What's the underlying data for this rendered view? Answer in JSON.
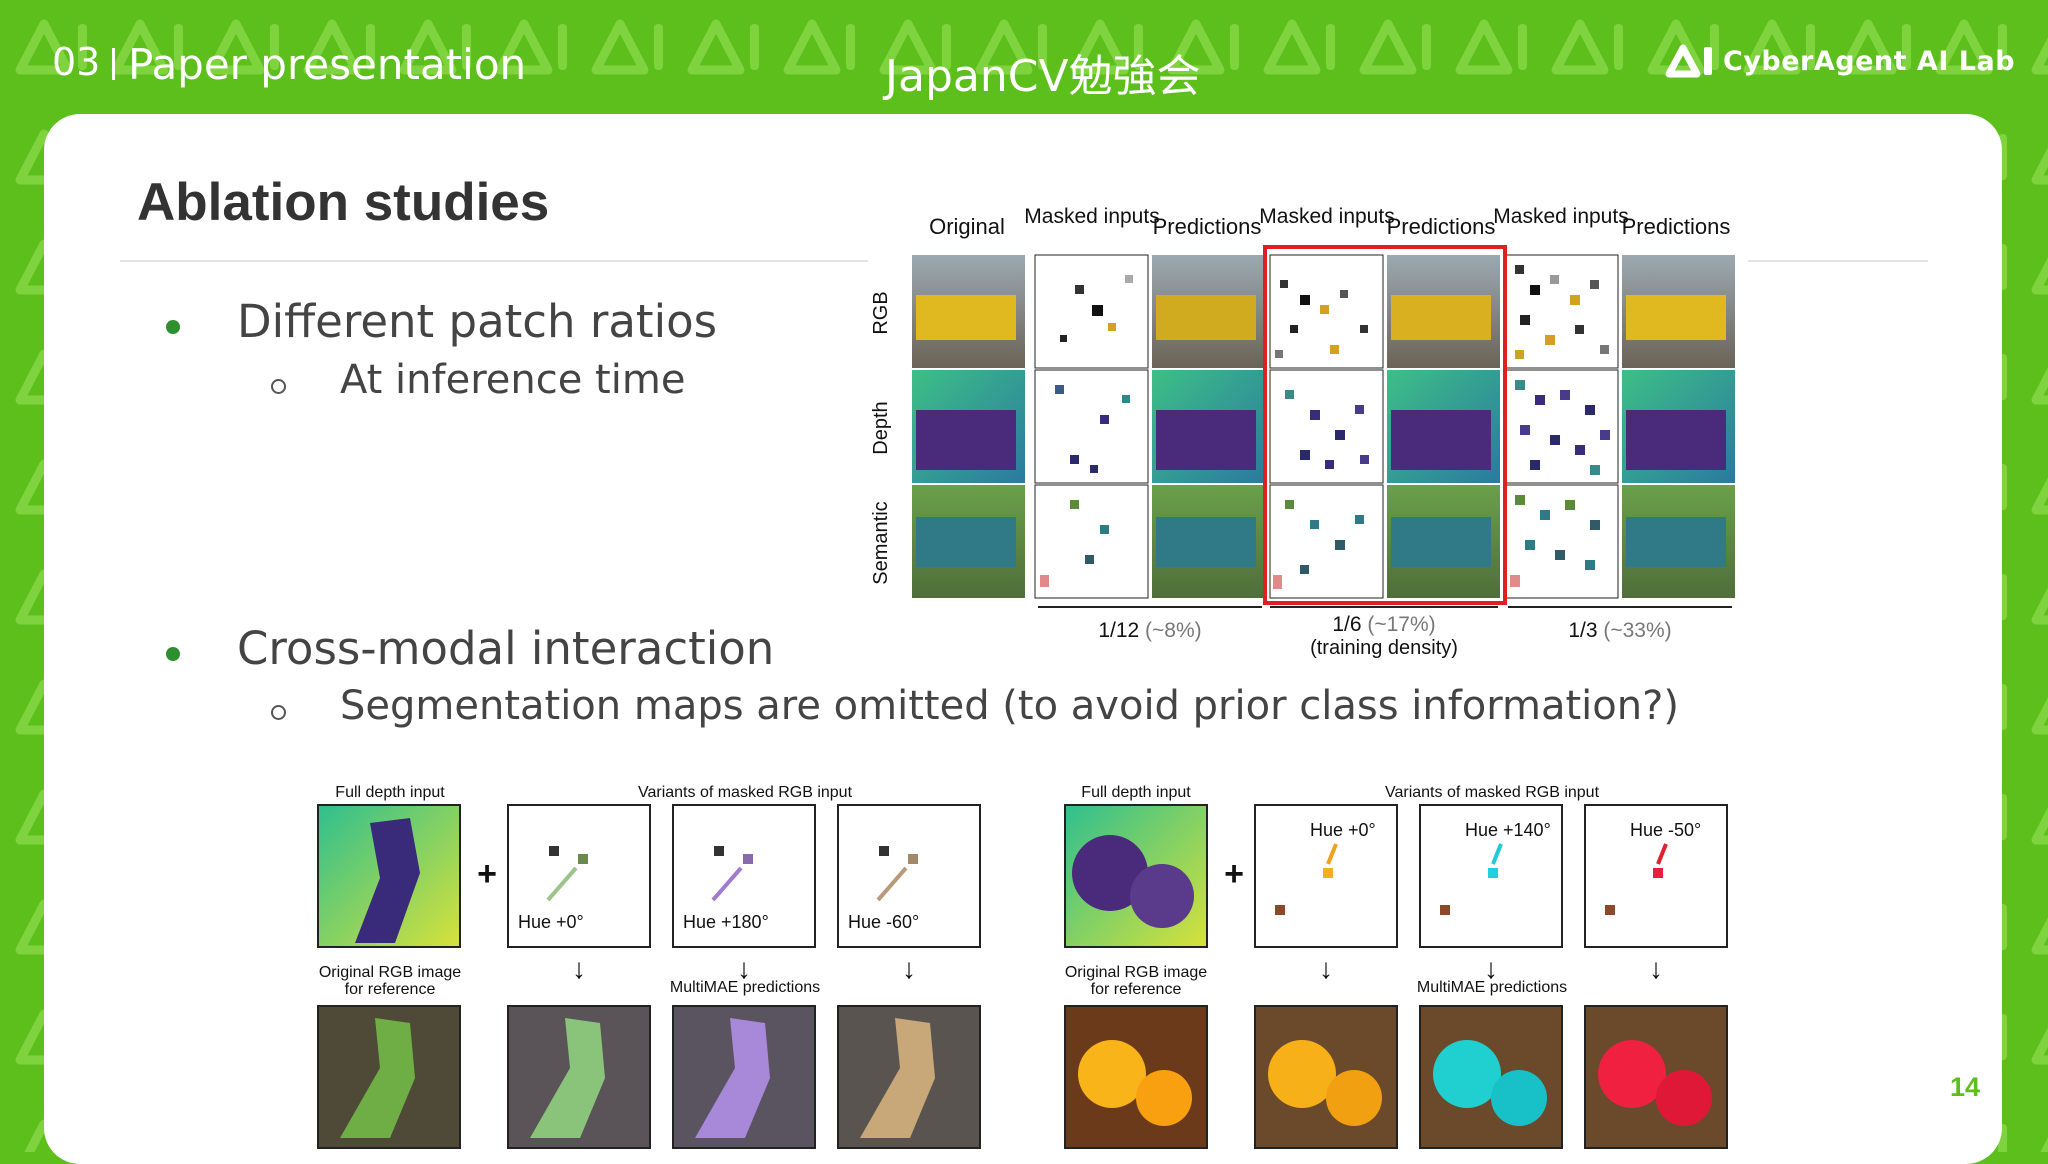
{
  "header": {
    "slide_number": "03",
    "title": "Paper presentation",
    "event": "JapanCV勉強会",
    "logo_text": "CyberAgent AI Lab",
    "logo_icon": "cyberagent-logo-icon"
  },
  "slide": {
    "title": "Ablation studies",
    "bullets": [
      {
        "text": "Different patch ratios",
        "sub": "At inference time"
      },
      {
        "text": "Cross-modal interaction",
        "sub": "Segmentation maps are omitted (to avoid prior class information?)"
      }
    ],
    "page_number": "14"
  },
  "figure_top": {
    "columns": [
      "Original",
      "Masked inputs",
      "Predictions",
      "Masked inputs",
      "Predictions",
      "Masked inputs",
      "Predictions"
    ],
    "rows": [
      "RGB",
      "Depth",
      "Semantic"
    ],
    "ratios": [
      {
        "label": "1/12",
        "pct": "(~8%)",
        "note": ""
      },
      {
        "label": "1/6",
        "pct": "(~17%)",
        "note": "(training density)"
      },
      {
        "label": "1/3",
        "pct": "(~33%)",
        "note": ""
      }
    ]
  },
  "figure_bottom": {
    "left": {
      "full_depth": "Full depth input",
      "variants": "Variants of masked RGB input",
      "original_line1": "Original RGB image",
      "original_line2": "for reference",
      "predictions": "MultiMAE predictions",
      "hues": [
        "Hue +0°",
        "Hue +180°",
        "Hue -60°"
      ]
    },
    "right": {
      "full_depth": "Full depth input",
      "variants": "Variants of masked RGB input",
      "original_line1": "Original RGB image",
      "original_line2": "for reference",
      "predictions": "MultiMAE predictions",
      "hues": [
        "Hue +0°",
        "Hue +140°",
        "Hue -50°"
      ]
    }
  },
  "colors": {
    "brand_green": "#5cbf1c",
    "highlight_red": "#e02020",
    "bullet_green": "#2e8f2e"
  }
}
